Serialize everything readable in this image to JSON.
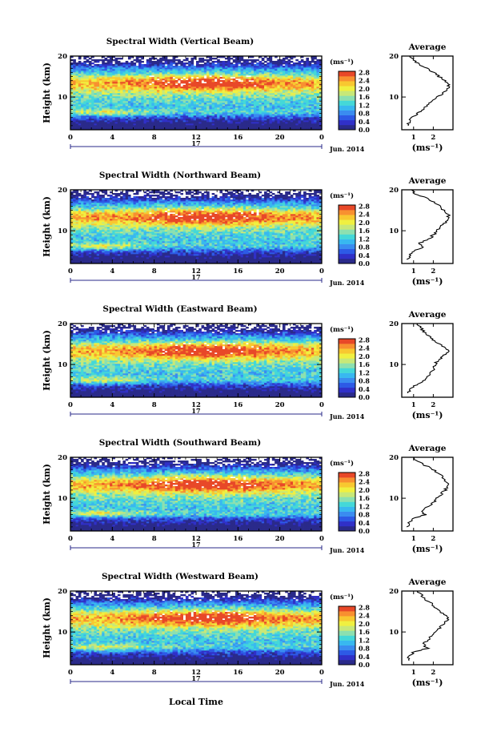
{
  "figure": {
    "date_day": "17",
    "date_month_year": "Jun. 2014",
    "xlabel": "Local Time"
  },
  "colorbar": {
    "unit": "(ms⁻¹)",
    "tick_labels": [
      "0.0",
      "0.4",
      "0.8",
      "1.2",
      "1.6",
      "2.0",
      "2.4",
      "2.8"
    ],
    "colors": [
      "#2a2a8a",
      "#3030c8",
      "#2d5ae6",
      "#3a8cf0",
      "#38b8f0",
      "#44d8d8",
      "#8ce0b0",
      "#c8e878",
      "#f0f040",
      "#f8c830",
      "#f89030",
      "#e84828"
    ]
  },
  "chart_data": [
    {
      "type": "heatmap",
      "title": "Spectral Width (Vertical Beam)",
      "xlabel": "Local Time",
      "ylabel": "Height (km)",
      "xlim": [
        0,
        24
      ],
      "ylim": [
        2,
        20
      ],
      "x_ticks": [
        "0",
        "4",
        "8",
        "12",
        "16",
        "20",
        "0"
      ],
      "y_ticks": [
        "10",
        "20"
      ],
      "value_unit": "ms⁻¹",
      "value_range": [
        0.0,
        2.8
      ],
      "profile": {
        "title": "Average",
        "xlabel": "(ms⁻¹)",
        "x_ticks": [
          "1",
          "2"
        ],
        "y_ticks": [
          "10",
          "20"
        ],
        "height_km": [
          3,
          4,
          5,
          6,
          7,
          8,
          9,
          10,
          11,
          12,
          13,
          14,
          15,
          16,
          17,
          18,
          19,
          20
        ],
        "width": [
          0.7,
          0.8,
          0.9,
          1.2,
          1.5,
          1.7,
          1.9,
          2.2,
          2.5,
          2.7,
          2.8,
          2.6,
          2.3,
          2.0,
          1.7,
          1.3,
          1.0,
          0.8
        ]
      }
    },
    {
      "type": "heatmap",
      "title": "Spectral Width (Northward Beam)",
      "xlabel": "Local Time",
      "ylabel": "Height (km)",
      "xlim": [
        0,
        24
      ],
      "ylim": [
        2,
        20
      ],
      "x_ticks": [
        "0",
        "4",
        "8",
        "12",
        "16",
        "20",
        "0"
      ],
      "y_ticks": [
        "10",
        "20"
      ],
      "value_unit": "ms⁻¹",
      "value_range": [
        0.0,
        2.8
      ],
      "profile": {
        "title": "Average",
        "xlabel": "(ms⁻¹)",
        "x_ticks": [
          "1",
          "2"
        ],
        "y_ticks": [
          "10",
          "20"
        ],
        "height_km": [
          3,
          4,
          5,
          6,
          7,
          8,
          9,
          10,
          11,
          12,
          13,
          14,
          15,
          16,
          17,
          18,
          19,
          20
        ],
        "width": [
          0.7,
          0.8,
          1.0,
          1.5,
          1.3,
          1.8,
          2.0,
          2.2,
          2.4,
          2.6,
          2.7,
          2.8,
          2.5,
          2.3,
          2.0,
          1.6,
          1.1,
          0.9
        ]
      }
    },
    {
      "type": "heatmap",
      "title": "Spectral Width (Eastward Beam)",
      "xlabel": "Local Time",
      "ylabel": "Height (km)",
      "xlim": [
        0,
        24
      ],
      "ylim": [
        2,
        20
      ],
      "x_ticks": [
        "0",
        "4",
        "8",
        "12",
        "16",
        "20",
        "0"
      ],
      "y_ticks": [
        "10",
        "20"
      ],
      "value_unit": "ms⁻¹",
      "value_range": [
        0.0,
        2.8
      ],
      "profile": {
        "title": "Average",
        "xlabel": "(ms⁻¹)",
        "x_ticks": [
          "1",
          "2"
        ],
        "y_ticks": [
          "10",
          "20"
        ],
        "height_km": [
          3,
          4,
          5,
          6,
          7,
          8,
          9,
          10,
          11,
          12,
          13,
          14,
          15,
          16,
          17,
          18,
          19,
          20
        ],
        "width": [
          0.7,
          0.8,
          1.1,
          1.5,
          1.7,
          1.9,
          2.0,
          2.1,
          2.2,
          2.5,
          2.8,
          2.7,
          2.3,
          2.0,
          1.8,
          1.5,
          1.4,
          1.2
        ]
      }
    },
    {
      "type": "heatmap",
      "title": "Spectral Width (Southward Beam)",
      "xlabel": "Local Time",
      "ylabel": "Height (km)",
      "xlim": [
        0,
        24
      ],
      "ylim": [
        2,
        20
      ],
      "x_ticks": [
        "0",
        "4",
        "8",
        "12",
        "16",
        "20",
        "0"
      ],
      "y_ticks": [
        "10",
        "20"
      ],
      "value_unit": "ms⁻¹",
      "value_range": [
        0.0,
        2.8
      ],
      "profile": {
        "title": "Average",
        "xlabel": "(ms⁻¹)",
        "x_ticks": [
          "1",
          "2"
        ],
        "y_ticks": [
          "10",
          "20"
        ],
        "height_km": [
          3,
          4,
          5,
          6,
          7,
          8,
          9,
          10,
          11,
          12,
          13,
          14,
          15,
          16,
          17,
          18,
          19,
          20
        ],
        "width": [
          0.7,
          0.8,
          1.0,
          1.6,
          1.4,
          1.8,
          2.0,
          2.2,
          2.4,
          2.6,
          2.8,
          2.7,
          2.5,
          2.3,
          2.0,
          1.6,
          1.2,
          1.0
        ]
      }
    },
    {
      "type": "heatmap",
      "title": "Spectral Width (Westward Beam)",
      "xlabel": "Local Time",
      "ylabel": "Height (km)",
      "xlim": [
        0,
        24
      ],
      "ylim": [
        2,
        20
      ],
      "x_ticks": [
        "0",
        "4",
        "8",
        "12",
        "16",
        "20",
        "0"
      ],
      "y_ticks": [
        "10",
        "20"
      ],
      "value_unit": "ms⁻¹",
      "value_range": [
        0.0,
        2.8
      ],
      "profile": {
        "title": "Average",
        "xlabel": "(ms⁻¹)",
        "x_ticks": [
          "1",
          "2"
        ],
        "y_ticks": [
          "10",
          "20"
        ],
        "height_km": [
          3,
          4,
          5,
          6,
          7,
          8,
          9,
          10,
          11,
          12,
          13,
          14,
          15,
          16,
          17,
          18,
          19,
          20
        ],
        "width": [
          0.7,
          0.8,
          1.0,
          1.7,
          1.5,
          1.7,
          1.9,
          2.1,
          2.3,
          2.5,
          2.8,
          2.6,
          2.3,
          2.1,
          1.9,
          1.6,
          1.4,
          1.2
        ]
      }
    }
  ]
}
